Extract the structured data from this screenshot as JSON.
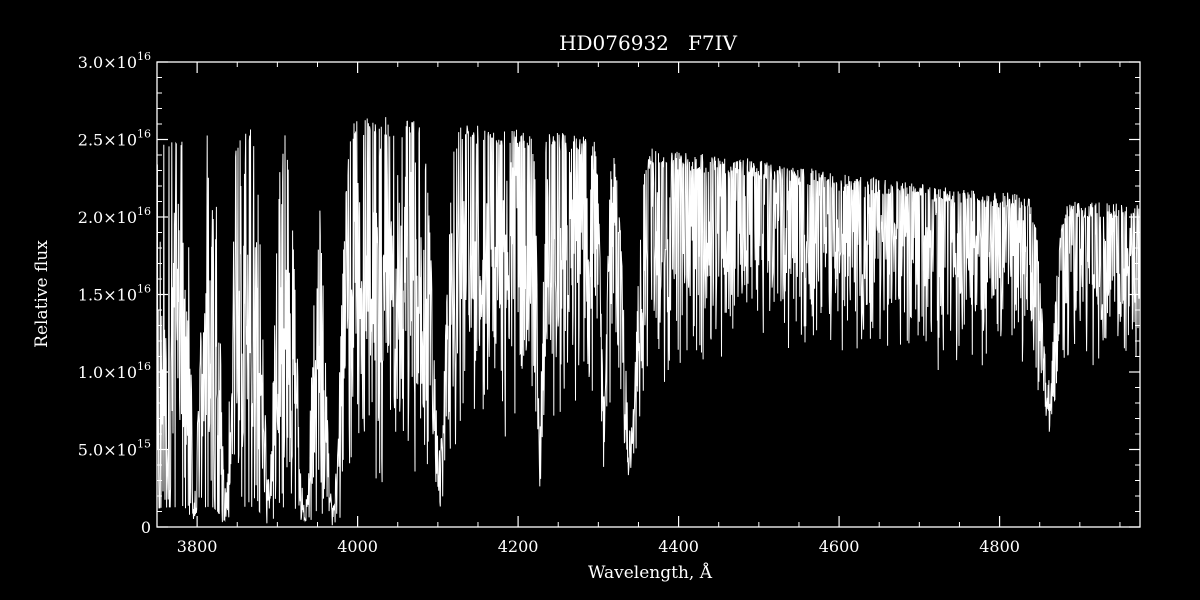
{
  "chart_data": {
    "type": "line",
    "title": "HD076932   F7IV",
    "xlabel": "Wavelength, Å",
    "ylabel": "Relative flux",
    "xlim": [
      3750,
      4975
    ],
    "ylim": [
      0,
      3e+16
    ],
    "x_ticks": [
      {
        "value": 3800,
        "label": "3800"
      },
      {
        "value": 4000,
        "label": "4000"
      },
      {
        "value": 4200,
        "label": "4200"
      },
      {
        "value": 4400,
        "label": "4400"
      },
      {
        "value": 4600,
        "label": "4600"
      },
      {
        "value": 4800,
        "label": "4800"
      }
    ],
    "y_ticks": [
      {
        "value": 0,
        "mantissa": "0",
        "exponent": ""
      },
      {
        "value": 5000000000000000.0,
        "mantissa": "5.0×10",
        "exponent": "15"
      },
      {
        "value": 1e+16,
        "mantissa": "1.0×10",
        "exponent": "16"
      },
      {
        "value": 1.5e+16,
        "mantissa": "1.5×10",
        "exponent": "16"
      },
      {
        "value": 2e+16,
        "mantissa": "2.0×10",
        "exponent": "16"
      },
      {
        "value": 2.5e+16,
        "mantissa": "2.5×10",
        "exponent": "16"
      },
      {
        "value": 3e+16,
        "mantissa": "3.0×10",
        "exponent": "16"
      }
    ],
    "grid": false,
    "background": "#000000",
    "foreground": "#ffffff",
    "series": [
      {
        "name": "",
        "continuum": {
          "x": [
            3750,
            3770,
            3800,
            3850,
            3900,
            3950,
            4000,
            4050,
            4100,
            4150,
            4200,
            4250,
            4300,
            4350,
            4400,
            4450,
            4500,
            4550,
            4600,
            4650,
            4700,
            4750,
            4800,
            4850,
            4900,
            4975
          ],
          "y": [
            2.45e+16,
            2.55e+16,
            2.6e+16,
            2.62e+16,
            2.6e+16,
            2.55e+16,
            2.65e+16,
            2.65e+16,
            2.6e+16,
            2.6e+16,
            2.57e+16,
            2.55e+16,
            2.5e+16,
            2.47e+16,
            2.42e+16,
            2.4e+16,
            2.37e+16,
            2.33e+16,
            2.28e+16,
            2.25e+16,
            2.22e+16,
            2.18e+16,
            2.17e+16,
            2.12e+16,
            2.1e+16,
            2.08e+16
          ]
        },
        "absorption_features": [
          {
            "x": 3797,
            "depth": 0.9,
            "width": 5
          },
          {
            "x": 3835,
            "depth": 0.9,
            "width": 6
          },
          {
            "x": 3889,
            "depth": 0.85,
            "width": 7
          },
          {
            "x": 3934,
            "depth": 0.95,
            "width": 9
          },
          {
            "x": 3969,
            "depth": 0.95,
            "width": 9
          },
          {
            "x": 4102,
            "depth": 0.8,
            "width": 8
          },
          {
            "x": 4227,
            "depth": 0.75,
            "width": 3
          },
          {
            "x": 4307,
            "depth": 0.65,
            "width": 4
          },
          {
            "x": 4340,
            "depth": 0.75,
            "width": 8
          },
          {
            "x": 4861,
            "depth": 0.55,
            "width": 8
          }
        ]
      }
    ]
  }
}
